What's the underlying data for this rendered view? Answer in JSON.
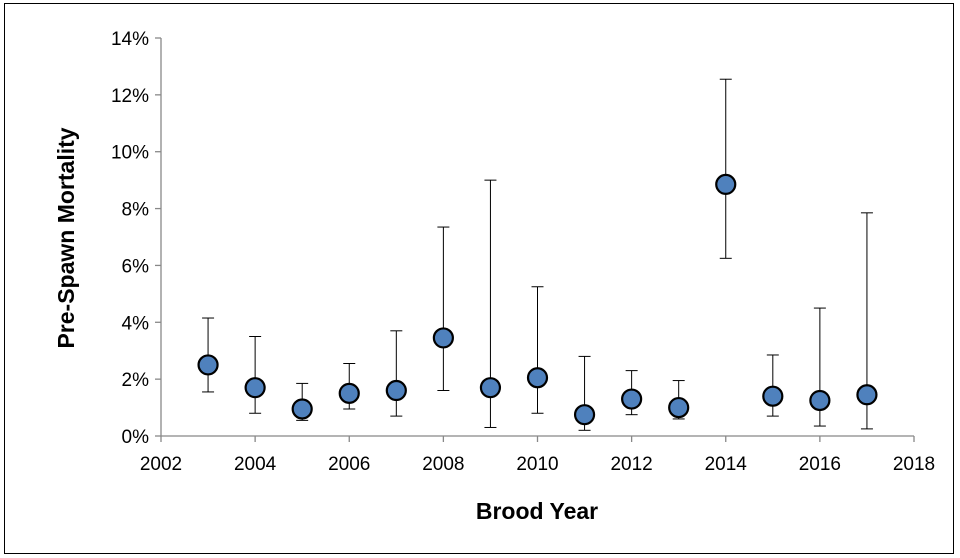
{
  "chart_data": {
    "type": "scatter",
    "xlabel": "Brood Year",
    "ylabel": "Pre-Spawn Mortality",
    "xlim": [
      2002,
      2018
    ],
    "ylim": [
      0,
      14
    ],
    "x_ticks": [
      "2002",
      "2004",
      "2006",
      "2008",
      "2010",
      "2012",
      "2014",
      "2016",
      "2018"
    ],
    "y_ticks": [
      "0%",
      "2%",
      "4%",
      "6%",
      "8%",
      "10%",
      "12%",
      "14%"
    ],
    "y_unit": "%",
    "grid": false,
    "legend": "none",
    "marker_color": "#4f81bd",
    "series": [
      {
        "points": [
          {
            "x": 2003,
            "y": 2.5,
            "lower": 1.55,
            "upper": 4.15
          },
          {
            "x": 2004,
            "y": 1.7,
            "lower": 0.8,
            "upper": 3.5
          },
          {
            "x": 2005,
            "y": 0.95,
            "lower": 0.55,
            "upper": 1.85
          },
          {
            "x": 2006,
            "y": 1.5,
            "lower": 0.95,
            "upper": 2.55
          },
          {
            "x": 2007,
            "y": 1.6,
            "lower": 0.7,
            "upper": 3.7
          },
          {
            "x": 2008,
            "y": 3.45,
            "lower": 1.6,
            "upper": 7.35
          },
          {
            "x": 2009,
            "y": 1.7,
            "lower": 0.3,
            "upper": 9.0
          },
          {
            "x": 2010,
            "y": 2.05,
            "lower": 0.8,
            "upper": 5.25
          },
          {
            "x": 2011,
            "y": 0.75,
            "lower": 0.2,
            "upper": 2.8
          },
          {
            "x": 2012,
            "y": 1.3,
            "lower": 0.75,
            "upper": 2.3
          },
          {
            "x": 2013,
            "y": 1.0,
            "lower": 0.6,
            "upper": 1.95
          },
          {
            "x": 2014,
            "y": 8.85,
            "lower": 6.25,
            "upper": 12.55
          },
          {
            "x": 2015,
            "y": 1.4,
            "lower": 0.7,
            "upper": 2.85
          },
          {
            "x": 2016,
            "y": 1.25,
            "lower": 0.35,
            "upper": 4.5
          },
          {
            "x": 2017,
            "y": 1.45,
            "lower": 0.25,
            "upper": 7.85
          }
        ]
      }
    ]
  }
}
